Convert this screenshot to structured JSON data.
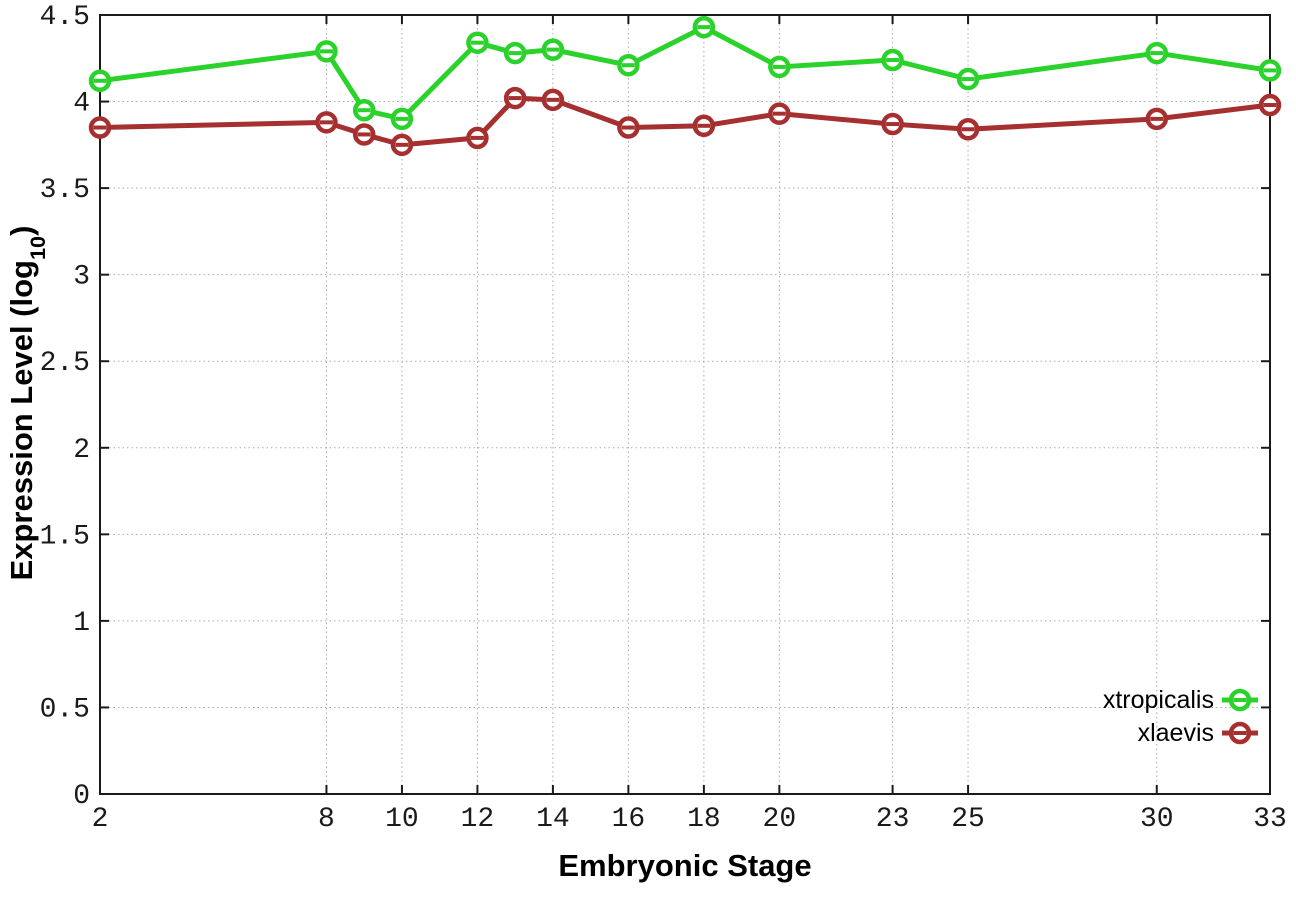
{
  "chart_data": {
    "type": "line",
    "title": "",
    "xlabel": "Embryonic Stage",
    "ylabel": "Expression Level (log10)",
    "ylabel_parts": {
      "prefix": "Expression Level (log",
      "subscript": "10",
      "suffix": ")"
    },
    "xlim": [
      2,
      33
    ],
    "ylim": [
      0,
      4.5
    ],
    "x_tick_values": [
      2,
      8,
      10,
      12,
      14,
      16,
      18,
      20,
      23,
      25,
      30,
      33
    ],
    "x_tick_labels": [
      "2",
      "8",
      "10",
      "12",
      "14",
      "16",
      "18",
      "20",
      "23",
      "25",
      "30",
      "33"
    ],
    "y_tick_values": [
      0,
      0.5,
      1,
      1.5,
      2,
      2.5,
      3,
      3.5,
      4,
      4.5
    ],
    "y_tick_labels": [
      "0",
      "0.5",
      "1",
      "1.5",
      "2",
      "2.5",
      "3",
      "3.5",
      "4",
      "4.5"
    ],
    "grid": true,
    "grid_style": "dotted",
    "legend_position": "inside-bottom-right",
    "marker": "open-circle-dash",
    "x": [
      2,
      8,
      9,
      10,
      12,
      13,
      14,
      16,
      18,
      20,
      23,
      25,
      30,
      33
    ],
    "series": [
      {
        "name": "xtropicalis",
        "color": "#2bd22b",
        "values": [
          4.12,
          4.29,
          3.95,
          3.9,
          4.34,
          4.28,
          4.3,
          4.21,
          4.43,
          4.2,
          4.24,
          4.13,
          4.28,
          4.18
        ]
      },
      {
        "name": "xlaevis",
        "color": "#a62f2f",
        "values": [
          3.85,
          3.88,
          3.81,
          3.75,
          3.79,
          4.02,
          4.01,
          3.85,
          3.86,
          3.93,
          3.87,
          3.84,
          3.9,
          3.98
        ]
      }
    ]
  },
  "colors": {
    "background": "#ffffff",
    "grid": "#ababab",
    "axis": "#1a1a1a",
    "marker_fill": "#ffffff"
  }
}
